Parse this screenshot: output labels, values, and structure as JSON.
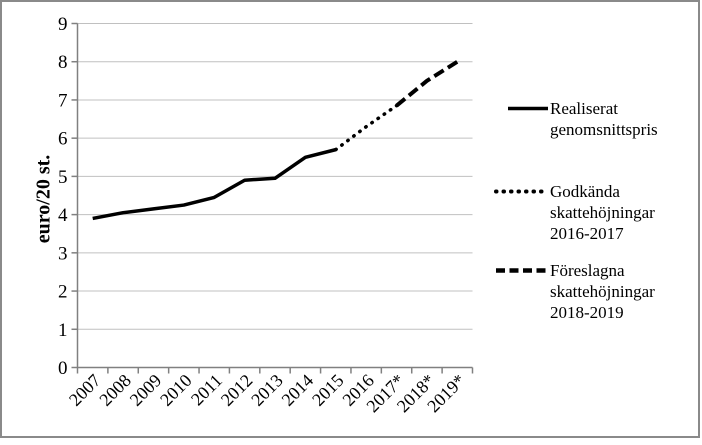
{
  "figure": {
    "background": "#ffffff",
    "border_color": "#8a8a8a",
    "axis_color": "#808080",
    "gridline_color": "#c0c0c0",
    "text_color": "#000000"
  },
  "chart_data": {
    "type": "line",
    "title": "",
    "xlabel": "",
    "ylabel": "euro/20 st.",
    "ylim": [
      0,
      9
    ],
    "ytick_step": 1,
    "grid": "horizontal",
    "legend_position": "right",
    "categories": [
      "2007",
      "2008",
      "2009",
      "2010",
      "2011",
      "2012",
      "2013",
      "2014",
      "2015",
      "2016",
      "2017*",
      "2018*",
      "2019*"
    ],
    "series": [
      {
        "name": "Realiserat genomsnittspris",
        "style": "solid",
        "color": "#000000",
        "start_index": 0,
        "values": [
          3.9,
          4.05,
          4.15,
          4.25,
          4.45,
          4.9,
          4.95,
          5.5,
          5.7
        ]
      },
      {
        "name": "Godkända skattehöjningar 2016-2017",
        "style": "dotted",
        "color": "#000000",
        "start_index": 8,
        "values": [
          5.7,
          6.3,
          6.85
        ]
      },
      {
        "name": "Föreslagna skattehöjningar 2018-2019",
        "style": "dashed",
        "color": "#000000",
        "start_index": 10,
        "values": [
          6.85,
          7.5,
          8.0
        ]
      }
    ]
  },
  "legend": {
    "items": [
      {
        "style": "solid",
        "lines": [
          "Realiserat",
          "genomsnittspris"
        ]
      },
      {
        "style": "dotted",
        "lines": [
          "Godkända",
          "skattehöjningar",
          "2016-2017"
        ]
      },
      {
        "style": "dashed",
        "lines": [
          "Föreslagna",
          "skattehöjningar",
          "2018-2019"
        ]
      }
    ]
  }
}
